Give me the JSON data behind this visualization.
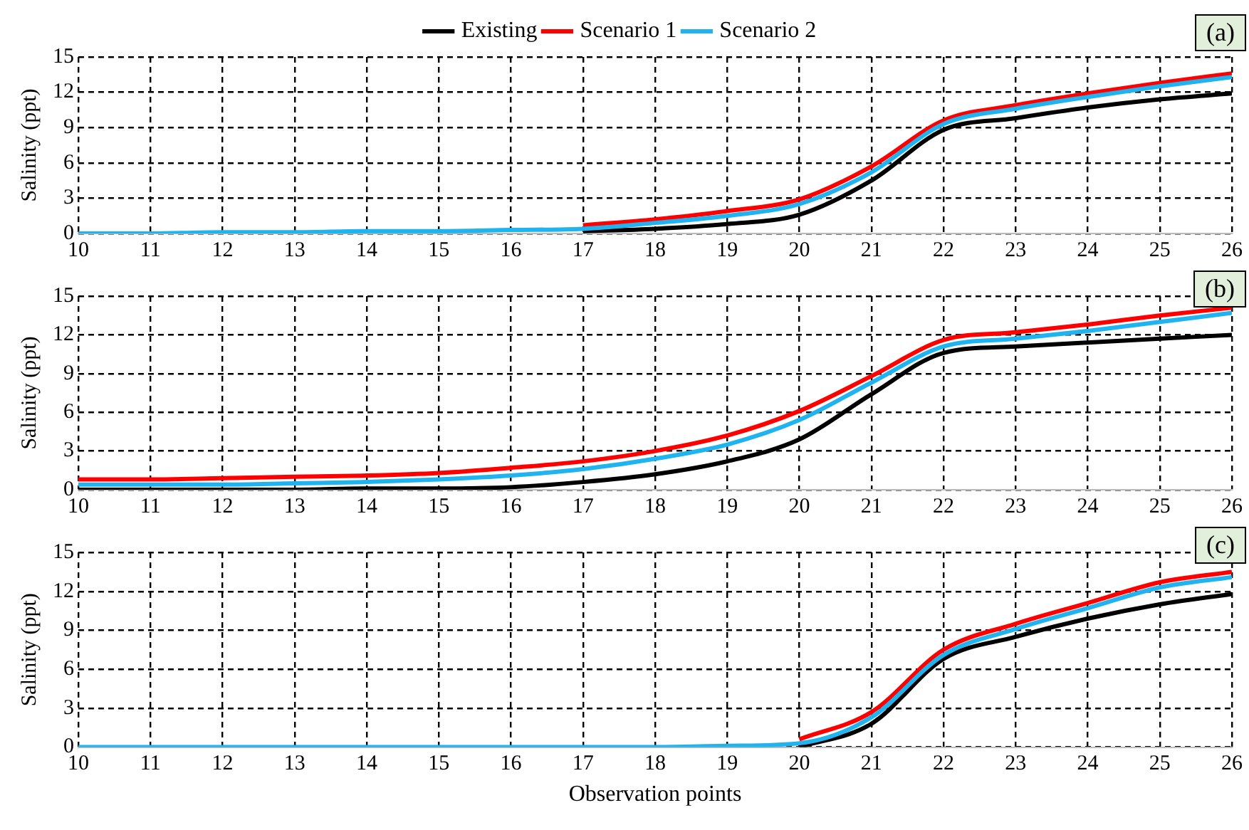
{
  "chart_data": [
    {
      "type": "line",
      "ylabel": "Salinity (ppt)",
      "annotations": [
        "(a)"
      ],
      "x": [
        10,
        11,
        12,
        13,
        14,
        15,
        16,
        17,
        18,
        19,
        20,
        21,
        22,
        23,
        24,
        25,
        26
      ],
      "xlim": [
        10,
        26
      ],
      "xticks": [
        10,
        11,
        12,
        13,
        14,
        15,
        16,
        17,
        18,
        19,
        20,
        21,
        22,
        23,
        24,
        25,
        26
      ],
      "ylim": [
        0,
        15
      ],
      "yticks": [
        0,
        3,
        6,
        9,
        12,
        15
      ],
      "grid": true,
      "legend": "top",
      "marker": "none",
      "series": [
        {
          "name": "Existing",
          "color": "#000000",
          "values": [
            null,
            null,
            null,
            null,
            null,
            null,
            null,
            0.2,
            0.4,
            0.8,
            1.6,
            4.5,
            8.8,
            9.8,
            10.7,
            11.4,
            11.9
          ]
        },
        {
          "name": "Scenario 1",
          "color": "#ff0000",
          "values": [
            null,
            null,
            null,
            null,
            null,
            null,
            null,
            0.7,
            1.2,
            1.9,
            2.9,
            5.7,
            9.6,
            10.9,
            11.9,
            12.8,
            13.6
          ]
        },
        {
          "name": "Scenario 2",
          "color": "#1fb4f0",
          "values": [
            0,
            0,
            0.1,
            0.1,
            0.2,
            0.2,
            0.3,
            0.4,
            0.9,
            1.5,
            2.5,
            5.2,
            9.3,
            10.6,
            11.6,
            12.5,
            13.3
          ]
        }
      ]
    },
    {
      "type": "line",
      "ylabel": "Salinity (ppt)",
      "annotations": [
        "(b)"
      ],
      "x": [
        10,
        11,
        12,
        13,
        14,
        15,
        16,
        17,
        18,
        19,
        20,
        21,
        22,
        23,
        24,
        25,
        26
      ],
      "xlim": [
        10,
        26
      ],
      "xticks": [
        10,
        11,
        12,
        13,
        14,
        15,
        16,
        17,
        18,
        19,
        20,
        21,
        22,
        23,
        24,
        25,
        26
      ],
      "ylim": [
        0,
        15
      ],
      "yticks": [
        0,
        3,
        6,
        9,
        12,
        15
      ],
      "grid": true,
      "marker": "none",
      "series": [
        {
          "color": "#000000",
          "values": [
            0,
            0,
            0,
            0,
            0.1,
            0.1,
            0.2,
            0.6,
            1.2,
            2.2,
            3.9,
            7.4,
            10.6,
            11.1,
            11.4,
            11.7,
            12.0
          ]
        },
        {
          "color": "#ff0000",
          "values": [
            0.8,
            0.8,
            0.9,
            1.0,
            1.1,
            1.3,
            1.7,
            2.2,
            3.0,
            4.2,
            6.1,
            8.8,
            11.6,
            12.2,
            12.8,
            13.5,
            14.1
          ]
        },
        {
          "color": "#1fb4f0",
          "values": [
            0.4,
            0.4,
            0.4,
            0.5,
            0.6,
            0.8,
            1.1,
            1.6,
            2.4,
            3.5,
            5.4,
            8.3,
            11.1,
            11.7,
            12.3,
            13.0,
            13.7
          ]
        }
      ]
    },
    {
      "type": "line",
      "ylabel": "Salinity (ppt)",
      "xlabel": "Observation points",
      "annotations": [
        "(c)"
      ],
      "x": [
        10,
        11,
        12,
        13,
        14,
        15,
        16,
        17,
        18,
        19,
        20,
        21,
        22,
        23,
        24,
        25,
        26
      ],
      "xlim": [
        10,
        26
      ],
      "xticks": [
        10,
        11,
        12,
        13,
        14,
        15,
        16,
        17,
        18,
        19,
        20,
        21,
        22,
        23,
        24,
        25,
        26
      ],
      "ylim": [
        0,
        15
      ],
      "yticks": [
        0,
        3,
        6,
        9,
        12,
        15
      ],
      "grid": true,
      "marker": "none",
      "series": [
        {
          "color": "#000000",
          "values": [
            null,
            null,
            null,
            null,
            null,
            null,
            null,
            null,
            null,
            null,
            0,
            1.8,
            6.8,
            8.5,
            9.9,
            11.0,
            11.8
          ]
        },
        {
          "color": "#ff0000",
          "values": [
            null,
            null,
            null,
            null,
            null,
            null,
            null,
            null,
            null,
            null,
            0.6,
            2.7,
            7.5,
            9.5,
            11.1,
            12.7,
            13.5
          ]
        },
        {
          "color": "#1fb4f0",
          "values": [
            0,
            0,
            0,
            0,
            0,
            0,
            0,
            0,
            0,
            0.1,
            0.3,
            2.3,
            7.1,
            9.1,
            10.7,
            12.3,
            13.1
          ]
        }
      ]
    }
  ]
}
